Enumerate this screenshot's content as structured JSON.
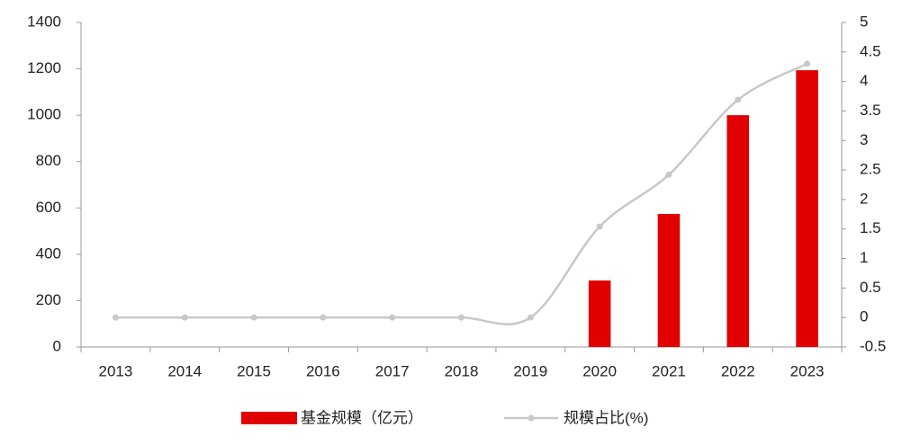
{
  "chart_data": {
    "type": "bar-line",
    "categories": [
      "2013",
      "2014",
      "2015",
      "2016",
      "2017",
      "2018",
      "2019",
      "2020",
      "2021",
      "2022",
      "2023"
    ],
    "series": [
      {
        "name": "基金规模（亿元）",
        "color": "#e00000",
        "type": "bar",
        "values": [
          0,
          0,
          0,
          0,
          0,
          0,
          0,
          287,
          574,
          1000,
          1194
        ]
      },
      {
        "name": "规模占比(%)",
        "color": "#c8c8c8",
        "type": "line",
        "axis": "y2",
        "values": [
          0,
          0,
          0,
          0,
          0,
          0,
          0,
          1.54,
          2.42,
          3.69,
          4.3
        ]
      }
    ],
    "ylim": [
      0,
      1400
    ],
    "yticks": [
      0,
      200,
      400,
      600,
      800,
      1000,
      1200,
      1400
    ],
    "y2lim": [
      -0.5,
      5
    ],
    "y2ticks": [
      -0.5,
      0,
      0.5,
      1,
      1.5,
      2,
      2.5,
      3,
      3.5,
      4,
      4.5,
      5
    ],
    "grid": false
  }
}
